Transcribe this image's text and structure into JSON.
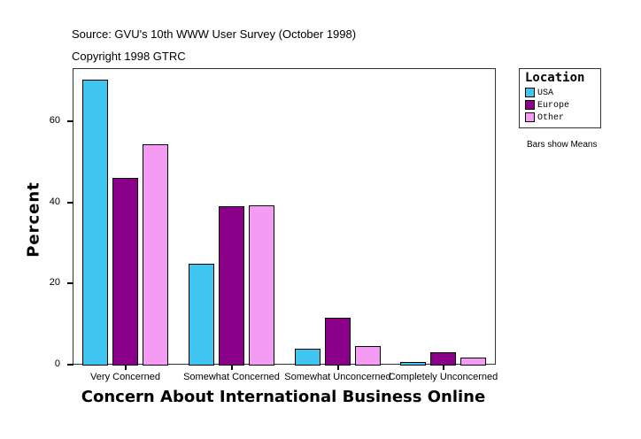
{
  "header": {
    "source": "Source: GVU's 10th WWW User Survey (October 1998)",
    "copyright": "Copyright 1998 GTRC"
  },
  "legend": {
    "title": "Location",
    "items": [
      {
        "label": "USA",
        "color": "#40C4F0"
      },
      {
        "label": "Europe",
        "color": "#8B0088"
      },
      {
        "label": "Other",
        "color": "#F49CF4"
      }
    ]
  },
  "note": "Bars show Means",
  "y_ticks": [
    "0",
    "20",
    "40",
    "60"
  ],
  "chart_data": {
    "type": "bar",
    "title": "",
    "xlabel": "Concern About International Business Online",
    "ylabel": "Percent",
    "categories": [
      "Very Concerned",
      "Somewhat Concerned",
      "Somewhat Unconcerned",
      "Completely Unconcerned"
    ],
    "series": [
      {
        "name": "USA",
        "values": [
          70.3,
          24.9,
          3.9,
          0.7
        ]
      },
      {
        "name": "Europe",
        "values": [
          46.0,
          39.1,
          11.6,
          3.1
        ]
      },
      {
        "name": "Other",
        "values": [
          54.3,
          39.3,
          4.6,
          1.7
        ]
      }
    ],
    "ylim": [
      0,
      73
    ],
    "yticks": [
      0,
      20,
      40,
      60
    ],
    "grid": false,
    "legend_position": "right",
    "annotations": [
      "Bars show Means"
    ]
  }
}
